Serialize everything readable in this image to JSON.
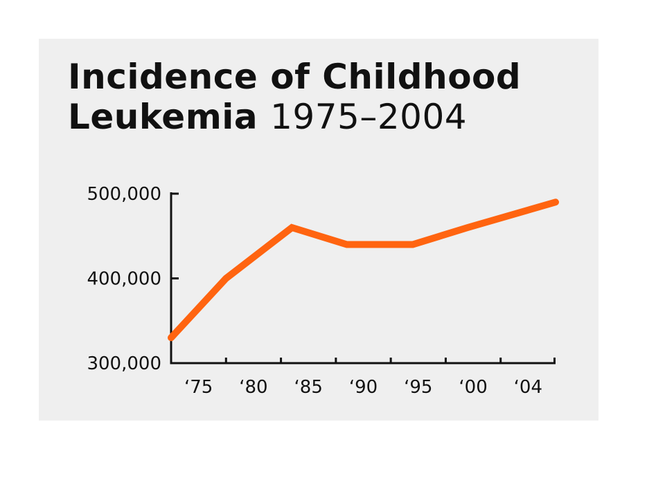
{
  "chart_data": {
    "type": "line",
    "title_line1": "Incidence of Childhood",
    "title_line2_bold": "Leukemia",
    "title_line2_light": "1975–2004",
    "x_tick_labels": [
      "‘75",
      "‘80",
      "‘85",
      "‘90",
      "‘95",
      "‘00",
      "‘04"
    ],
    "y_tick_labels": [
      "500,000",
      "400,000",
      "300,000"
    ],
    "y_ticks": [
      500000,
      400000,
      300000
    ],
    "ylim": [
      300000,
      500000
    ],
    "xlim": [
      1974,
      2009
    ],
    "series": [
      {
        "x": [
          1974,
          1979,
          1985,
          1990,
          1996,
          2001,
          2009
        ],
        "values": [
          330000,
          400000,
          460000,
          440000,
          440000,
          460000,
          490000
        ]
      }
    ],
    "line_color": "#ff6410",
    "axis_color": "#111111",
    "grid": false
  }
}
